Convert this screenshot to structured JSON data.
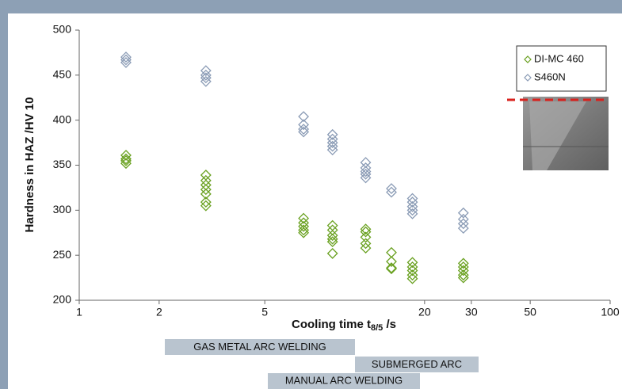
{
  "chart_data": {
    "type": "scatter",
    "xlabel": {
      "text": "Cooling time t",
      "subscript": "8/5",
      "suffix": " /s"
    },
    "ylabel": "Hardness in HAZ /HV 10",
    "log_x": true,
    "xlim": [
      1,
      100
    ],
    "ylim": [
      200,
      500
    ],
    "xticks": [
      1,
      2,
      5,
      20,
      30,
      50,
      100
    ],
    "yticks": [
      200,
      250,
      300,
      350,
      400,
      450,
      500
    ],
    "legend": "upper right",
    "series": [
      {
        "name": "DI-MC 460",
        "color": "#6aa121",
        "x": [
          1.5,
          1.5,
          1.5,
          1.5,
          3,
          3,
          3,
          3,
          3,
          3,
          3,
          7,
          7,
          7,
          7,
          7,
          9,
          9,
          9,
          9,
          9,
          9,
          12,
          12,
          12,
          12,
          12,
          15,
          15,
          15,
          15,
          18,
          18,
          18,
          18,
          18,
          28,
          28,
          28,
          28,
          28
        ],
        "values": [
          361,
          357,
          355,
          352,
          339,
          333,
          328,
          323,
          318,
          309,
          305,
          291,
          286,
          282,
          278,
          275,
          283,
          278,
          272,
          268,
          265,
          252,
          279,
          276,
          270,
          263,
          258,
          253,
          243,
          236,
          235,
          242,
          237,
          233,
          228,
          224,
          241,
          237,
          233,
          228,
          225
        ]
      },
      {
        "name": "S460N",
        "color": "#8a9bb5",
        "x": [
          1.5,
          1.5,
          1.5,
          3,
          3,
          3,
          3,
          7,
          7,
          7,
          7,
          9,
          9,
          9,
          9,
          9,
          12,
          12,
          12,
          12,
          12,
          15,
          15,
          18,
          18,
          18,
          18,
          18,
          28,
          28,
          28,
          28
        ],
        "values": [
          470,
          467,
          464,
          455,
          450,
          447,
          443,
          404,
          395,
          390,
          387,
          384,
          379,
          375,
          371,
          367,
          353,
          347,
          343,
          340,
          336,
          324,
          320,
          313,
          309,
          304,
          300,
          296,
          297,
          290,
          285,
          280
        ]
      }
    ],
    "annotations": [
      "GAS METAL ARC WELDING",
      "SUBMERGED ARC",
      "MANUAL ARC WELDING"
    ]
  }
}
